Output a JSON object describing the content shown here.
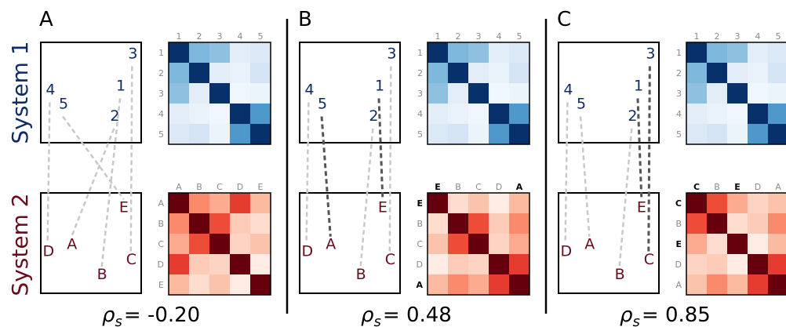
{
  "row_labels": {
    "system1": "System 1",
    "system2": "System 2"
  },
  "colors": {
    "system1": "#0d2b66",
    "system2": "#6b0a1a",
    "link_light": "#c8c8c8",
    "link_dark": "#555555",
    "divider": "#000000"
  },
  "panels": [
    {
      "letter": "A",
      "rho_symbol": "ρ",
      "rho_sub": "s",
      "rho_value": "= -0.20",
      "system1": {
        "points": [
          {
            "label": "3",
            "x": 0.87,
            "y": 0.16
          },
          {
            "label": "4",
            "x": 0.05,
            "y": 0.52
          },
          {
            "label": "1",
            "x": 0.75,
            "y": 0.48
          },
          {
            "label": "5",
            "x": 0.18,
            "y": 0.66
          },
          {
            "label": "2",
            "x": 0.69,
            "y": 0.78
          }
        ],
        "tick_labels": [
          "1",
          "2",
          "3",
          "4",
          "5"
        ],
        "matrix": [
          [
            1.0,
            0.55,
            0.5,
            0.15,
            0.2
          ],
          [
            0.55,
            1.0,
            0.15,
            0.1,
            0.25
          ],
          [
            0.5,
            0.15,
            1.0,
            0.05,
            0.08
          ],
          [
            0.15,
            0.1,
            0.05,
            1.0,
            0.7
          ],
          [
            0.2,
            0.25,
            0.08,
            0.7,
            1.0
          ]
        ]
      },
      "system2": {
        "points": [
          {
            "label": "E",
            "x": 0.78,
            "y": 0.19
          },
          {
            "label": "A",
            "x": 0.26,
            "y": 0.56
          },
          {
            "label": "D",
            "x": 0.02,
            "y": 0.63
          },
          {
            "label": "C",
            "x": 0.85,
            "y": 0.71
          },
          {
            "label": "B",
            "x": 0.56,
            "y": 0.86
          }
        ],
        "tick_top": [
          {
            "text": "A",
            "bold": false
          },
          {
            "text": "B",
            "bold": false
          },
          {
            "text": "C",
            "bold": false
          },
          {
            "text": "D",
            "bold": false
          },
          {
            "text": "E",
            "bold": false
          }
        ],
        "tick_left": [
          {
            "text": "A",
            "bold": false
          },
          {
            "text": "B",
            "bold": false
          },
          {
            "text": "C",
            "bold": false
          },
          {
            "text": "D",
            "bold": false
          },
          {
            "text": "E",
            "bold": false
          }
        ],
        "matrix": [
          [
            1.0,
            0.5,
            0.4,
            0.75,
            0.35
          ],
          [
            0.5,
            1.0,
            0.7,
            0.25,
            0.15
          ],
          [
            0.4,
            0.7,
            1.0,
            0.2,
            0.3
          ],
          [
            0.75,
            0.25,
            0.2,
            1.0,
            0.05
          ],
          [
            0.35,
            0.15,
            0.3,
            0.05,
            1.0
          ]
        ]
      },
      "links": [
        {
          "from": "4",
          "to": "D",
          "style": "light"
        },
        {
          "from": "5",
          "to": "E",
          "style": "light"
        },
        {
          "from": "2",
          "to": "A",
          "style": "light"
        },
        {
          "from": "1",
          "to": "B",
          "style": "light"
        },
        {
          "from": "3",
          "to": "C",
          "style": "light"
        }
      ]
    },
    {
      "letter": "B",
      "rho_symbol": "ρ",
      "rho_sub": "s",
      "rho_value": "= 0.48",
      "system1": {
        "points": [
          {
            "label": "3",
            "x": 0.87,
            "y": 0.16
          },
          {
            "label": "4",
            "x": 0.05,
            "y": 0.52
          },
          {
            "label": "1",
            "x": 0.75,
            "y": 0.48
          },
          {
            "label": "5",
            "x": 0.18,
            "y": 0.66
          },
          {
            "label": "2",
            "x": 0.69,
            "y": 0.78
          }
        ],
        "tick_labels": [
          "1",
          "2",
          "3",
          "4",
          "5"
        ],
        "matrix": [
          [
            1.0,
            0.55,
            0.5,
            0.15,
            0.2
          ],
          [
            0.55,
            1.0,
            0.15,
            0.1,
            0.25
          ],
          [
            0.5,
            0.15,
            1.0,
            0.05,
            0.08
          ],
          [
            0.15,
            0.1,
            0.05,
            1.0,
            0.7
          ],
          [
            0.2,
            0.25,
            0.08,
            0.7,
            1.0
          ]
        ]
      },
      "system2": {
        "points": [
          {
            "label": "E",
            "x": 0.78,
            "y": 0.19
          },
          {
            "label": "A",
            "x": 0.26,
            "y": 0.56
          },
          {
            "label": "D",
            "x": 0.02,
            "y": 0.63
          },
          {
            "label": "C",
            "x": 0.85,
            "y": 0.71
          },
          {
            "label": "B",
            "x": 0.56,
            "y": 0.86
          }
        ],
        "tick_top": [
          {
            "text": "E",
            "bold": true
          },
          {
            "text": "B",
            "bold": false
          },
          {
            "text": "C",
            "bold": false
          },
          {
            "text": "D",
            "bold": false
          },
          {
            "text": "A",
            "bold": true
          }
        ],
        "tick_left": [
          {
            "text": "E",
            "bold": true
          },
          {
            "text": "B",
            "bold": false
          },
          {
            "text": "C",
            "bold": false
          },
          {
            "text": "D",
            "bold": false
          },
          {
            "text": "A",
            "bold": true
          }
        ],
        "matrix": [
          [
            1.0,
            0.15,
            0.3,
            0.05,
            0.35
          ],
          [
            0.15,
            1.0,
            0.7,
            0.25,
            0.5
          ],
          [
            0.3,
            0.7,
            1.0,
            0.2,
            0.4
          ],
          [
            0.05,
            0.25,
            0.2,
            1.0,
            0.75
          ],
          [
            0.35,
            0.5,
            0.4,
            0.75,
            1.0
          ]
        ]
      },
      "links": [
        {
          "from": "4",
          "to": "D",
          "style": "light"
        },
        {
          "from": "5",
          "to": "A",
          "style": "dark"
        },
        {
          "from": "2",
          "to": "B",
          "style": "light"
        },
        {
          "from": "1",
          "to": "E",
          "style": "dark"
        },
        {
          "from": "3",
          "to": "C",
          "style": "light"
        }
      ]
    },
    {
      "letter": "C",
      "rho_symbol": "ρ",
      "rho_sub": "s",
      "rho_value": "= 0.85",
      "system1": {
        "points": [
          {
            "label": "3",
            "x": 0.87,
            "y": 0.16
          },
          {
            "label": "4",
            "x": 0.05,
            "y": 0.52
          },
          {
            "label": "1",
            "x": 0.75,
            "y": 0.48
          },
          {
            "label": "5",
            "x": 0.18,
            "y": 0.66
          },
          {
            "label": "2",
            "x": 0.69,
            "y": 0.78
          }
        ],
        "tick_labels": [
          "1",
          "2",
          "3",
          "4",
          "5"
        ],
        "matrix": [
          [
            1.0,
            0.55,
            0.5,
            0.15,
            0.2
          ],
          [
            0.55,
            1.0,
            0.15,
            0.1,
            0.25
          ],
          [
            0.5,
            0.15,
            1.0,
            0.05,
            0.08
          ],
          [
            0.15,
            0.1,
            0.05,
            1.0,
            0.7
          ],
          [
            0.2,
            0.25,
            0.08,
            0.7,
            1.0
          ]
        ]
      },
      "system2": {
        "points": [
          {
            "label": "E",
            "x": 0.78,
            "y": 0.19
          },
          {
            "label": "A",
            "x": 0.26,
            "y": 0.56
          },
          {
            "label": "D",
            "x": 0.02,
            "y": 0.63
          },
          {
            "label": "C",
            "x": 0.85,
            "y": 0.71
          },
          {
            "label": "B",
            "x": 0.56,
            "y": 0.86
          }
        ],
        "tick_top": [
          {
            "text": "C",
            "bold": true
          },
          {
            "text": "B",
            "bold": false
          },
          {
            "text": "E",
            "bold": true
          },
          {
            "text": "D",
            "bold": false
          },
          {
            "text": "A",
            "bold": false
          }
        ],
        "tick_left": [
          {
            "text": "C",
            "bold": true
          },
          {
            "text": "B",
            "bold": false
          },
          {
            "text": "E",
            "bold": true
          },
          {
            "text": "D",
            "bold": false
          },
          {
            "text": "A",
            "bold": false
          }
        ],
        "matrix": [
          [
            1.0,
            0.7,
            0.4,
            0.2,
            0.3
          ],
          [
            0.7,
            1.0,
            0.15,
            0.25,
            0.5
          ],
          [
            0.4,
            0.15,
            1.0,
            0.05,
            0.35
          ],
          [
            0.2,
            0.25,
            0.05,
            1.0,
            0.75
          ],
          [
            0.3,
            0.5,
            0.35,
            0.75,
            1.0
          ]
        ]
      },
      "links": [
        {
          "from": "4",
          "to": "D",
          "style": "light"
        },
        {
          "from": "5",
          "to": "A",
          "style": "light"
        },
        {
          "from": "2",
          "to": "B",
          "style": "light"
        },
        {
          "from": "1",
          "to": "E",
          "style": "dark"
        },
        {
          "from": "3",
          "to": "C",
          "style": "dark"
        }
      ]
    }
  ]
}
